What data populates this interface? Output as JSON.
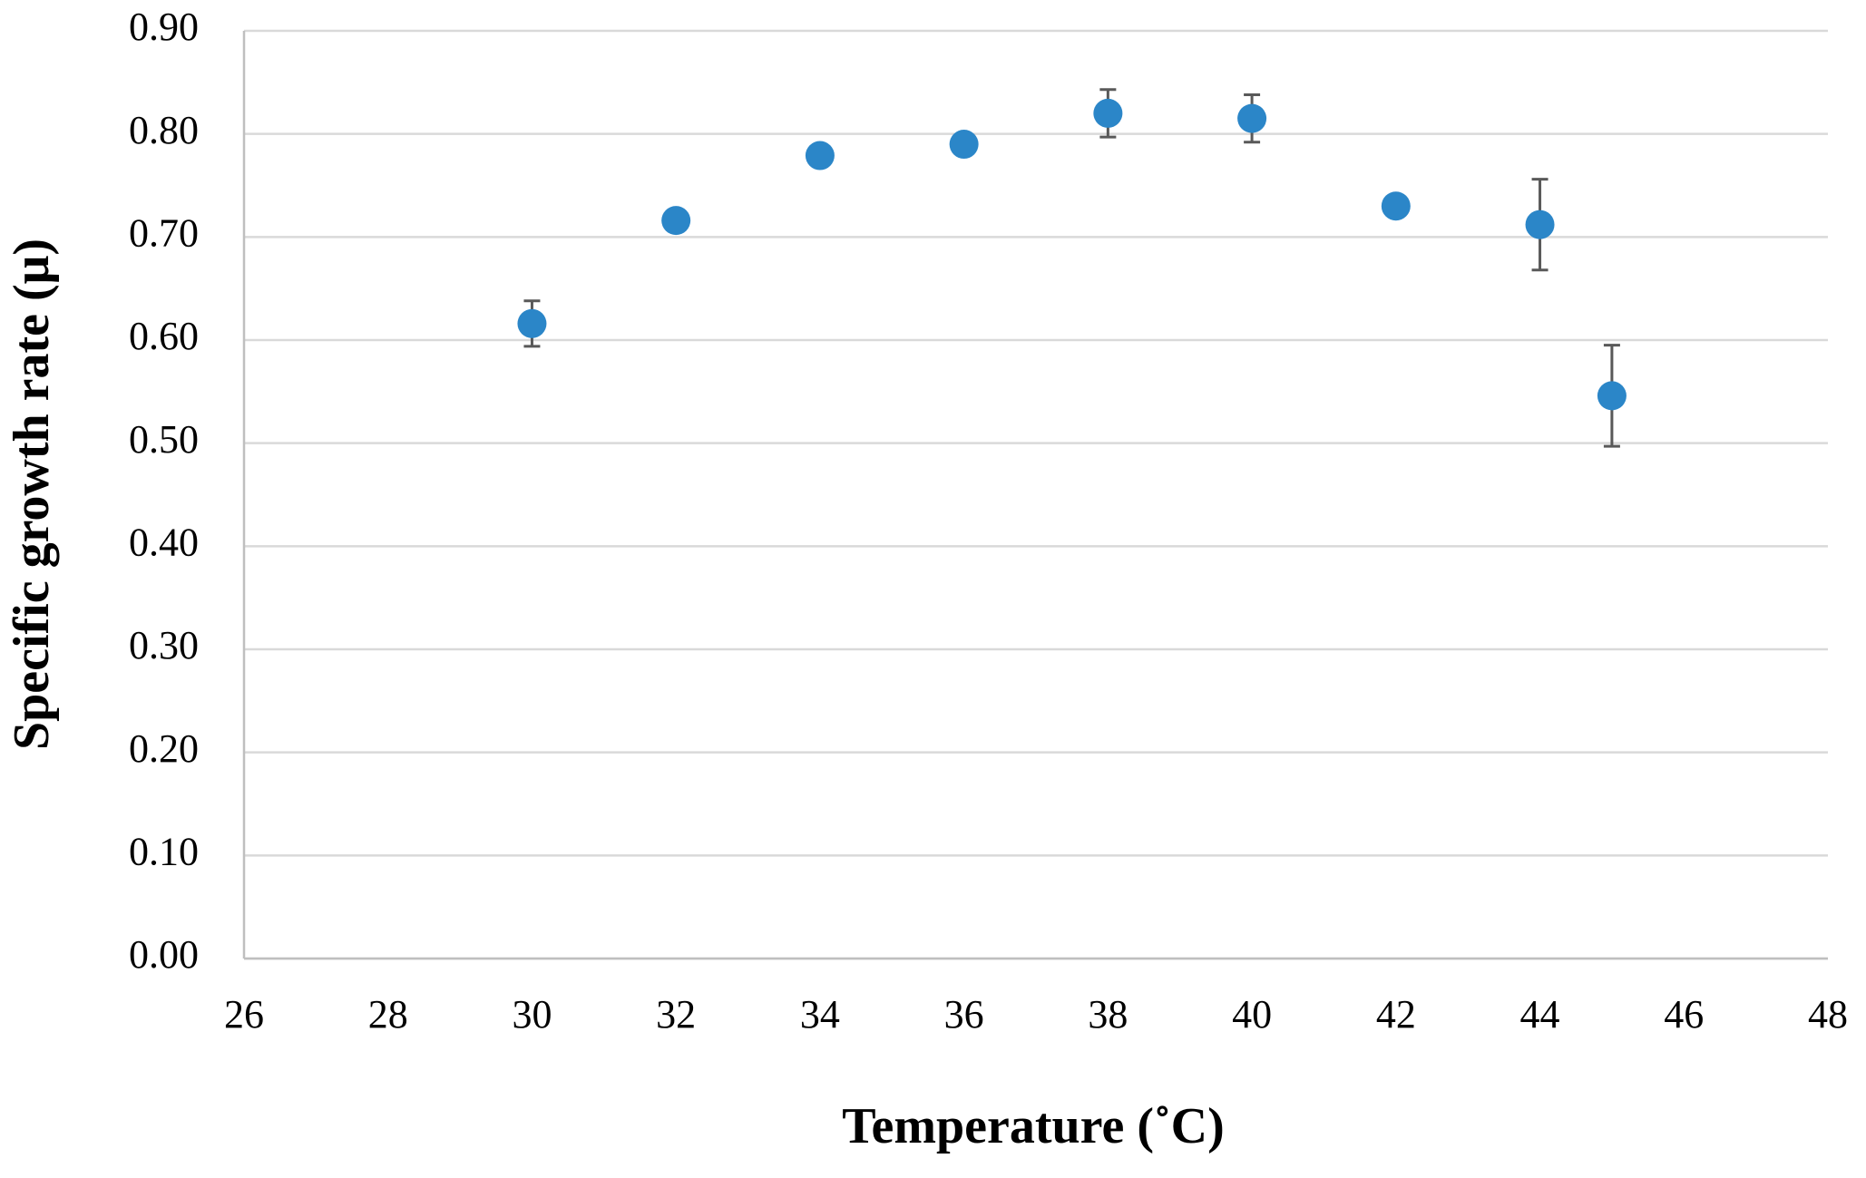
{
  "chart_data": {
    "type": "scatter",
    "x_label": "Temperature (˚C)",
    "y_label": "Specific growth rate (μ)",
    "x": [
      30,
      32,
      34,
      36,
      38,
      40,
      42,
      44,
      45
    ],
    "series": [
      {
        "color": "#2b86c8",
        "values": [
          0.616,
          0.716,
          0.779,
          0.79,
          0.82,
          0.815,
          0.73,
          0.712,
          0.546
        ],
        "errors": [
          0.022,
          null,
          null,
          null,
          0.023,
          0.023,
          null,
          0.044,
          0.049
        ]
      }
    ],
    "xlim": [
      26,
      48
    ],
    "xticks": [
      26,
      28,
      30,
      32,
      34,
      36,
      38,
      40,
      42,
      44,
      46,
      48
    ],
    "ylim": [
      0,
      0.9
    ],
    "yticks": [
      {
        "value": 0,
        "label": "0.00"
      },
      {
        "value": 0.1,
        "label": "0.10"
      },
      {
        "value": 0.2,
        "label": "0.20"
      },
      {
        "value": 0.3,
        "label": "0.30"
      },
      {
        "value": 0.4,
        "label": "0.40"
      },
      {
        "value": 0.5,
        "label": "0.50"
      },
      {
        "value": 0.6,
        "label": "0.60"
      },
      {
        "value": 0.7,
        "label": "0.70"
      },
      {
        "value": 0.8,
        "label": "0.80"
      },
      {
        "value": 0.9,
        "label": "0.90"
      }
    ],
    "grid": true
  }
}
